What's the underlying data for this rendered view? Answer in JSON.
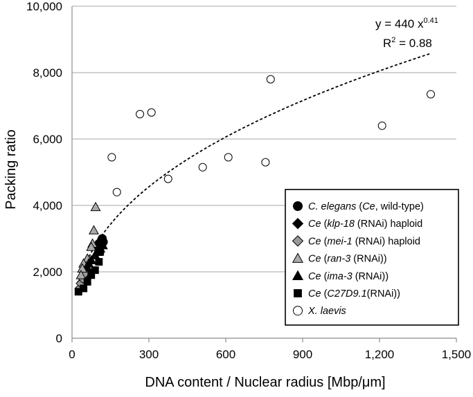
{
  "chart_data": {
    "type": "scatter",
    "xlabel": "DNA content / Nuclear radius [Mbp/μm]",
    "ylabel": "Packing ratio",
    "xlim": [
      0,
      1500
    ],
    "ylim": [
      0,
      10000
    ],
    "x_ticks": [
      0,
      300,
      600,
      900,
      1200,
      1500
    ],
    "x_tick_labels": [
      "0",
      "300",
      "600",
      "900",
      "1,200",
      "1,500"
    ],
    "y_ticks": [
      0,
      2000,
      4000,
      6000,
      8000,
      10000
    ],
    "y_tick_labels": [
      "0",
      "2,000",
      "4,000",
      "6,000",
      "8,000",
      "10,000"
    ],
    "grid": {
      "horizontal": true,
      "vertical": false
    },
    "legend_position": "bottom-right",
    "trendline": {
      "type": "power",
      "coefficient": 440,
      "exponent": 0.41,
      "x_range": [
        50,
        1400
      ],
      "equation_text": "y = 440 x",
      "exponent_text": "0.41",
      "r2_prefix": "R",
      "r2_superscript": "2",
      "r2_suffix": " = 0.88"
    },
    "series": [
      {
        "legend": {
          "species": "C. elegans",
          "rest": " (Ce, wild-type)"
        },
        "marker": "circle",
        "fill": "#000000",
        "points": [
          [
            105,
            2850
          ],
          [
            115,
            2950
          ],
          [
            122,
            2900
          ],
          [
            95,
            2750
          ],
          [
            110,
            2800
          ],
          [
            118,
            3000
          ]
        ]
      },
      {
        "legend": {
          "prefix": "Ce",
          "gene": "klp-18",
          "rest": " (RNAi) haploid"
        },
        "marker": "diamond",
        "fill": "#000000",
        "points": [
          [
            40,
            1700
          ],
          [
            45,
            1850
          ],
          [
            55,
            1950
          ],
          [
            60,
            2050
          ],
          [
            65,
            2000
          ]
        ]
      },
      {
        "legend": {
          "prefix": "Ce",
          "gene": "mei-1",
          "rest": " (RNAi) haploid"
        },
        "marker": "diamond",
        "fill": "#999999",
        "points": [
          [
            30,
            1500
          ],
          [
            35,
            1650
          ],
          [
            42,
            1800
          ],
          [
            50,
            1950
          ]
        ]
      },
      {
        "legend": {
          "prefix": "Ce",
          "gene": "ran-3",
          "rest": " (RNAi))"
        },
        "marker": "triangle",
        "fill": "#aaaaaa",
        "points": [
          [
            92,
            3950
          ],
          [
            85,
            3250
          ],
          [
            80,
            2850
          ],
          [
            75,
            2750
          ],
          [
            60,
            2400
          ],
          [
            45,
            2250
          ],
          [
            40,
            2100
          ],
          [
            35,
            1900
          ]
        ]
      },
      {
        "legend": {
          "prefix": "Ce",
          "gene": "ima-3",
          "rest": " (RNAi))"
        },
        "marker": "triangle",
        "fill": "#000000",
        "points": [
          [
            120,
            2800
          ],
          [
            110,
            2700
          ],
          [
            100,
            2600
          ],
          [
            90,
            2500
          ],
          [
            75,
            2350
          ],
          [
            65,
            2250
          ]
        ]
      },
      {
        "legend": {
          "prefix": "Ce",
          "gene": "C27D9.1",
          "rest": "(RNAi))"
        },
        "marker": "square",
        "fill": "#000000",
        "points": [
          [
            25,
            1400
          ],
          [
            45,
            1500
          ],
          [
            60,
            1700
          ],
          [
            75,
            1900
          ],
          [
            90,
            2050
          ],
          [
            105,
            2300
          ],
          [
            110,
            2600
          ]
        ]
      },
      {
        "legend": {
          "species": "X. laevis",
          "rest": ""
        },
        "marker": "circle",
        "fill": "#ffffff",
        "points": [
          [
            155,
            5450
          ],
          [
            175,
            4400
          ],
          [
            265,
            6750
          ],
          [
            310,
            6800
          ],
          [
            375,
            4800
          ],
          [
            510,
            5150
          ],
          [
            610,
            5450
          ],
          [
            755,
            5300
          ],
          [
            775,
            7800
          ],
          [
            1210,
            6400
          ],
          [
            1400,
            7350
          ]
        ]
      }
    ]
  }
}
